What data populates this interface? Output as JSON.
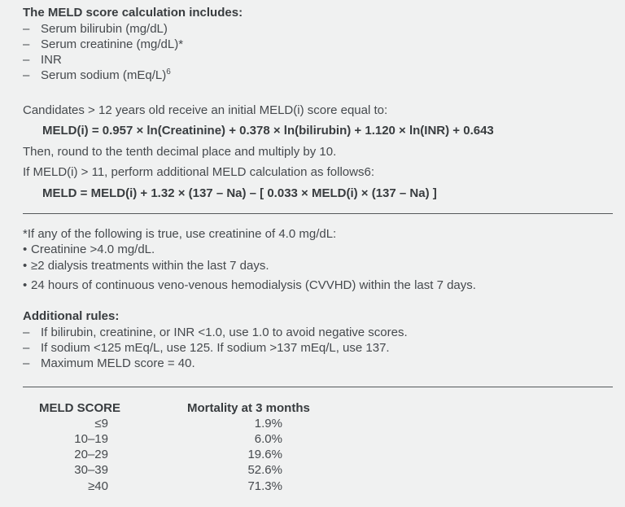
{
  "colors": {
    "background": "#f0f1f1",
    "body_text": "#45494d",
    "bold_text": "#383c3f",
    "rule": "#54585b"
  },
  "section1": {
    "heading": "The MELD score calculation includes:",
    "marker": "–",
    "items": [
      {
        "text": "Serum bilirubin (mg/dL)",
        "sup": ""
      },
      {
        "text": "Serum creatinine (mg/dL)*",
        "sup": ""
      },
      {
        "text": "INR",
        "sup": ""
      },
      {
        "text": "Serum sodium (mEq/L)",
        "sup": "6"
      }
    ]
  },
  "section2": {
    "line1": "Candidates > 12 years old receive an initial MELD(i) score equal to:",
    "formula1": "MELD(i) = 0.957 × ln(Creatinine) + 0.378 × ln(bilirubin) + 1.120 × ln(INR) + 0.643",
    "line2": "Then, round to the tenth decimal place and multiply by 10.",
    "line3": "If MELD(i) > 11, perform additional MELD calculation as follows6:",
    "formula2": "MELD = MELD(i) + 1.32 × (137 – Na) – [ 0.033 × MELD(i) × (137 – Na) ]"
  },
  "footnote": {
    "intro": "*If any of the following is true, use creatinine of 4.0 mg/dL:",
    "marker": "•",
    "items": [
      "Creatinine >4.0 mg/dL.",
      "≥2 dialysis treatments within the last 7 days.",
      "24 hours of continuous veno-venous hemodialysis (CVVHD) within the last 7 days."
    ]
  },
  "additional_rules": {
    "heading": "Additional rules:",
    "marker": "–",
    "items": [
      "If bilirubin, creatinine, or INR <1.0, use 1.0 to avoid negative scores.",
      "If sodium <125 mEq/L, use 125. If sodium >137 mEq/L, use 137.",
      "Maximum MELD score = 40."
    ]
  },
  "table": {
    "columns": [
      "MELD SCORE",
      "Mortality at 3 months"
    ],
    "rows": [
      {
        "score": "≤9",
        "mortality": "1.9%"
      },
      {
        "score": "10–19",
        "mortality": "6.0%"
      },
      {
        "score": "20–29",
        "mortality": "19.6%"
      },
      {
        "score": "30–39",
        "mortality": "52.6%"
      },
      {
        "score": "≥40",
        "mortality": "71.3%"
      }
    ]
  }
}
